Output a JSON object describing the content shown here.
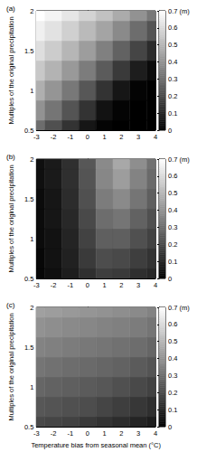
{
  "chart_data": [
    {
      "type": "heatmap",
      "title": "(a)",
      "ylabel": "Multiples of the original precipitation",
      "x": [
        -3,
        -2,
        -1,
        0,
        1,
        2,
        3,
        4
      ],
      "y": [
        0.5,
        0.75,
        1,
        1.25,
        1.5,
        1.75,
        2
      ],
      "z": [
        [
          0.3,
          0.22,
          0.14,
          0.06,
          0.01,
          0,
          0,
          0
        ],
        [
          0.4,
          0.32,
          0.23,
          0.14,
          0.05,
          0.01,
          0,
          0
        ],
        [
          0.48,
          0.41,
          0.33,
          0.24,
          0.14,
          0.06,
          0.01,
          0
        ],
        [
          0.55,
          0.49,
          0.42,
          0.34,
          0.25,
          0.16,
          0.08,
          0.03
        ],
        [
          0.61,
          0.56,
          0.5,
          0.43,
          0.35,
          0.27,
          0.19,
          0.12
        ],
        [
          0.66,
          0.62,
          0.57,
          0.51,
          0.45,
          0.38,
          0.3,
          0.23
        ],
        [
          0.7,
          0.67,
          0.63,
          0.58,
          0.53,
          0.47,
          0.4,
          0.33
        ]
      ],
      "xlim": [
        -3,
        4
      ],
      "xticks": [
        -3,
        -2,
        -1,
        0,
        1,
        2,
        3,
        4
      ],
      "ylim": [
        0.5,
        2
      ],
      "yticks": [
        0.5,
        1,
        1.5,
        2
      ],
      "colorbar": {
        "range": [
          0,
          0.7
        ],
        "colors": [
          "#000000",
          "#ffffff"
        ],
        "ticks": [
          0,
          0.1,
          0.2,
          0.3,
          0.4,
          0.5,
          0.6,
          {
            "value": 0.7,
            "label": "0.7 (m)"
          }
        ]
      }
    },
    {
      "type": "heatmap",
      "title": "(b)",
      "ylabel": "Multiples of the original precipitation",
      "x": [
        -3,
        -2,
        -1,
        0,
        1,
        2,
        3,
        4
      ],
      "y": [
        0.5,
        0.75,
        1,
        1.25,
        1.5,
        1.75,
        2
      ],
      "z": [
        [
          0.02,
          0.04,
          0.08,
          0.13,
          0.17,
          0.16,
          0.13,
          0.11
        ],
        [
          0.02,
          0.05,
          0.09,
          0.16,
          0.21,
          0.2,
          0.17,
          0.14
        ],
        [
          0.03,
          0.05,
          0.1,
          0.18,
          0.26,
          0.26,
          0.22,
          0.18
        ],
        [
          0.03,
          0.06,
          0.11,
          0.2,
          0.3,
          0.32,
          0.27,
          0.22
        ],
        [
          0.03,
          0.06,
          0.12,
          0.22,
          0.34,
          0.38,
          0.32,
          0.26
        ],
        [
          0.04,
          0.07,
          0.13,
          0.23,
          0.37,
          0.43,
          0.36,
          0.29
        ],
        [
          0.04,
          0.07,
          0.13,
          0.24,
          0.38,
          0.46,
          0.39,
          0.31
        ]
      ],
      "xlim": [
        -3,
        4
      ],
      "xticks": [
        -3,
        -2,
        -1,
        0,
        1,
        2,
        3,
        4
      ],
      "ylim": [
        0.5,
        2
      ],
      "yticks": [
        0.5,
        1,
        1.5,
        2
      ],
      "colorbar": {
        "range": [
          0,
          0.7
        ],
        "colors": [
          "#000000",
          "#ffffff"
        ],
        "ticks": [
          0,
          0.1,
          0.2,
          0.3,
          0.4,
          0.5,
          0.6,
          {
            "value": 0.7,
            "label": "0.7 (m)"
          }
        ]
      }
    },
    {
      "type": "heatmap",
      "title": "(c)",
      "ylabel": "Multiples of the original precipitation",
      "xlabel": "Temperature bias from seasonal mean (°C)",
      "x": [
        -3,
        -2,
        -1,
        0,
        1,
        2,
        3,
        4
      ],
      "y": [
        0.5,
        0.75,
        1,
        1.25,
        1.5,
        1.75,
        2
      ],
      "z": [
        [
          0.2,
          0.19,
          0.18,
          0.16,
          0.14,
          0.12,
          0.1,
          0.08
        ],
        [
          0.24,
          0.23,
          0.22,
          0.21,
          0.19,
          0.17,
          0.15,
          0.13
        ],
        [
          0.28,
          0.27,
          0.26,
          0.25,
          0.24,
          0.22,
          0.2,
          0.18
        ],
        [
          0.32,
          0.31,
          0.3,
          0.29,
          0.28,
          0.27,
          0.25,
          0.23
        ],
        [
          0.36,
          0.35,
          0.34,
          0.33,
          0.32,
          0.31,
          0.3,
          0.28
        ],
        [
          0.4,
          0.39,
          0.38,
          0.37,
          0.36,
          0.35,
          0.34,
          0.32
        ],
        [
          0.44,
          0.43,
          0.42,
          0.41,
          0.4,
          0.39,
          0.38,
          0.36
        ]
      ],
      "xlim": [
        -3,
        4
      ],
      "xticks": [
        -3,
        -2,
        -1,
        0,
        1,
        2,
        3,
        4
      ],
      "ylim": [
        0.5,
        2
      ],
      "yticks": [
        0.5,
        1,
        1.5,
        2
      ],
      "colorbar": {
        "range": [
          0,
          0.7
        ],
        "colors": [
          "#000000",
          "#ffffff"
        ],
        "ticks": [
          0,
          0.1,
          0.2,
          0.3,
          0.4,
          0.5,
          0.6,
          {
            "value": 0.7,
            "label": "0.7 (m)"
          }
        ]
      }
    }
  ]
}
